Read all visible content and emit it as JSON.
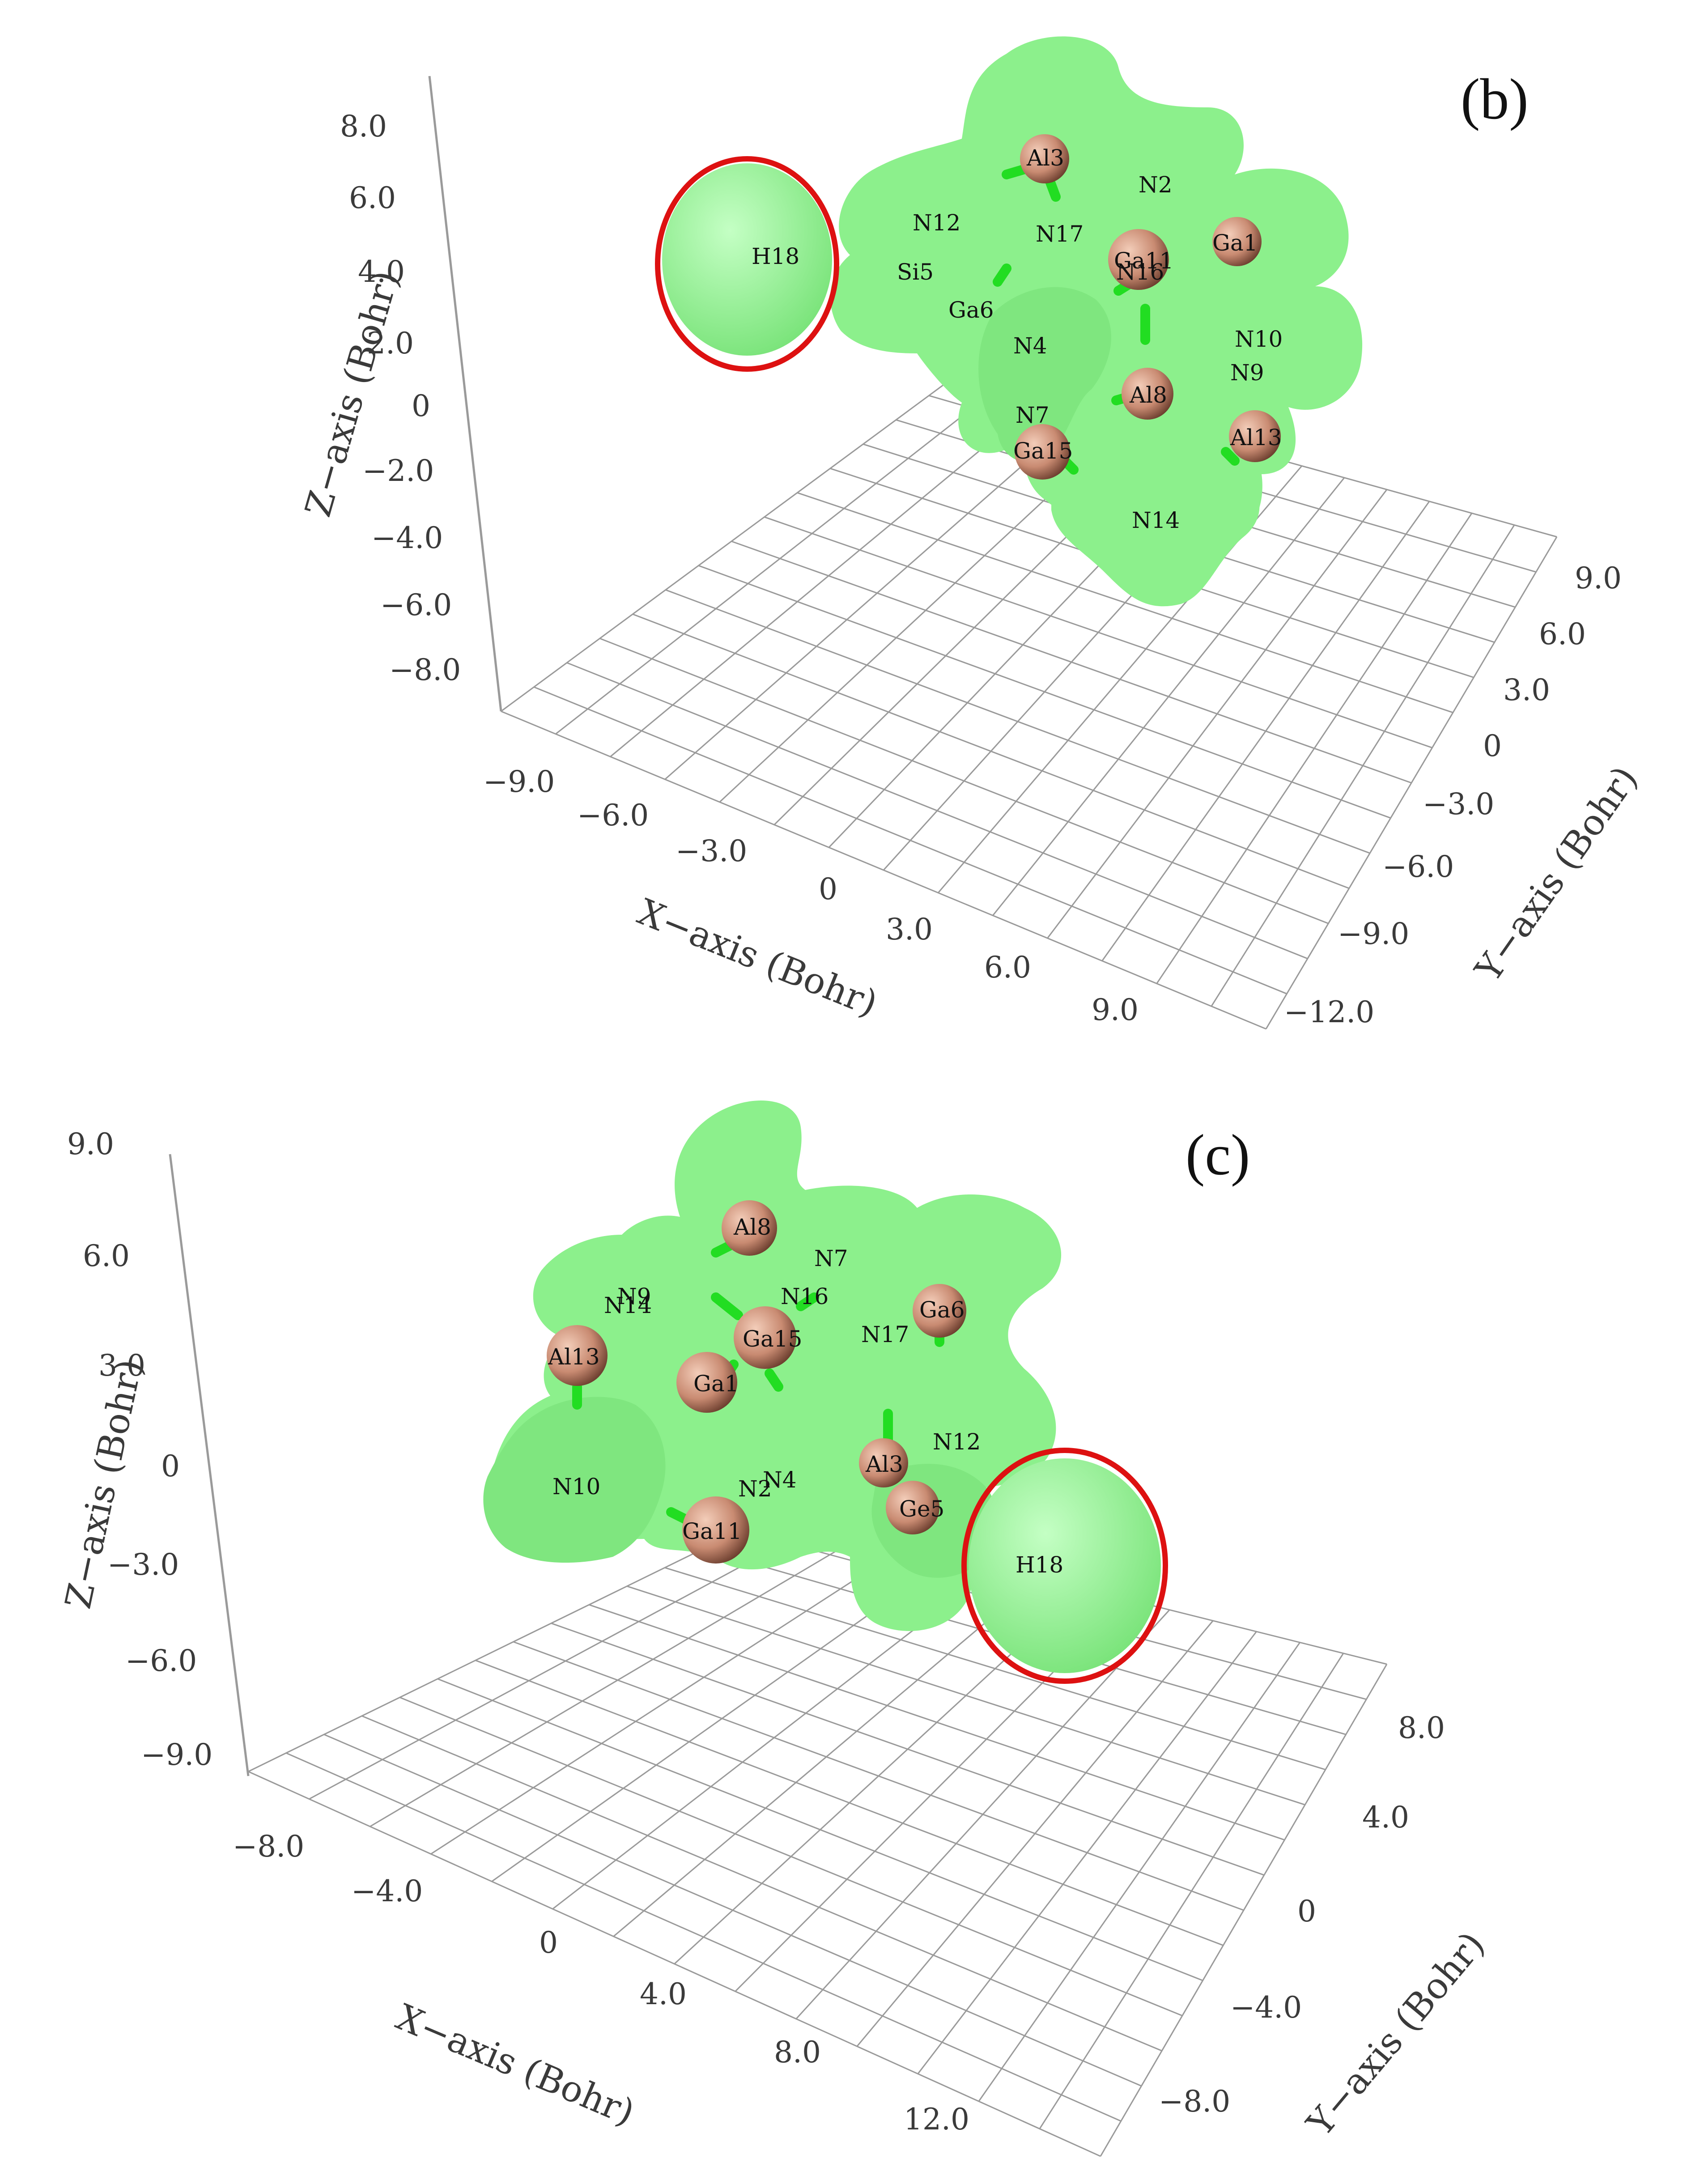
{
  "colors": {
    "isosurface": "#8cf08c",
    "isosurface_dark": "#5cd45c",
    "atom": "#c98b72",
    "bond": "#22dd22",
    "highlight_ring": "#dd1111",
    "grid": "#9a9a9a"
  },
  "panels": [
    {
      "id": "b",
      "label": "(b)",
      "axes": {
        "z_label": "Z−axis (Bohr)",
        "x_label": "X−axis (Bohr)",
        "y_label": "Y−axis (Bohr)",
        "z_ticks": [
          "8.0",
          "6.0",
          "4.0",
          "2.0",
          "0",
          "−2.0",
          "−4.0",
          "−6.0",
          "−8.0"
        ],
        "x_ticks": [
          "−9.0",
          "−6.0",
          "−3.0",
          "0",
          "3.0",
          "6.0",
          "9.0"
        ],
        "y_ticks": [
          "9.0",
          "6.0",
          "3.0",
          "0",
          "−3.0",
          "−6.0",
          "−9.0",
          "−12.0"
        ]
      },
      "atom_labels": [
        "Al3",
        "N2",
        "N12",
        "N17",
        "Ga11",
        "N16",
        "Ga1",
        "H18",
        "Si5",
        "Ga6",
        "N4",
        "N10",
        "N9",
        "Al8",
        "N7",
        "Ga15",
        "Al13",
        "N14"
      ],
      "highlighted_atom": "H18"
    },
    {
      "id": "c",
      "label": "(c)",
      "axes": {
        "z_label": "Z−axis (Bohr)",
        "x_label": "X−axis (Bohr)",
        "y_label": "Y−axis (Bohr)",
        "z_ticks": [
          "9.0",
          "6.0",
          "3.0",
          "0",
          "−3.0",
          "−6.0",
          "−9.0"
        ],
        "x_ticks": [
          "−8.0",
          "−4.0",
          "0",
          "4.0",
          "8.0",
          "12.0"
        ],
        "y_ticks": [
          "8.0",
          "4.0",
          "0",
          "−4.0",
          "−8.0"
        ]
      },
      "atom_labels": [
        "Al8",
        "N7",
        "N9",
        "N14",
        "N16",
        "Ga15",
        "Ga6",
        "N17",
        "Al13",
        "Ga1",
        "N12",
        "N10",
        "N2",
        "N4",
        "Al3",
        "Ge5",
        "Ga11",
        "H18"
      ],
      "highlighted_atom": "H18"
    }
  ]
}
